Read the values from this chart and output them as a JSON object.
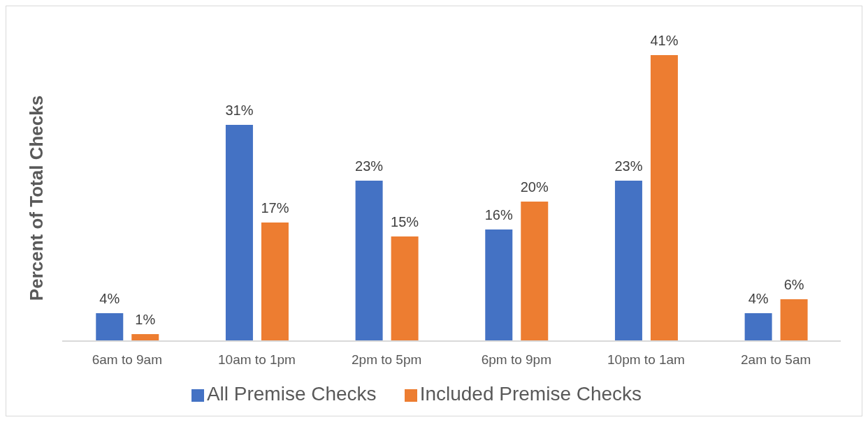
{
  "chart_data": {
    "type": "bar",
    "ylabel": "Percent of Total Checks",
    "categories": [
      "6am to 9am",
      "10am to 1pm",
      "2pm to 5pm",
      "6pm to 9pm",
      "10pm to 1am",
      "2am to 5am"
    ],
    "series": [
      {
        "name": "All Premise Checks",
        "color": "#4472c4",
        "values": [
          4,
          31,
          23,
          16,
          23,
          4
        ],
        "value_labels": [
          "4%",
          "31%",
          "23%",
          "16%",
          "23%",
          "4%"
        ]
      },
      {
        "name": "Included Premise Checks",
        "color": "#ed7d31",
        "values": [
          1,
          17,
          15,
          20,
          41,
          6
        ],
        "value_labels": [
          "1%",
          "17%",
          "15%",
          "20%",
          "41%",
          "6%"
        ]
      }
    ],
    "legend": "bottom",
    "grid": false
  }
}
